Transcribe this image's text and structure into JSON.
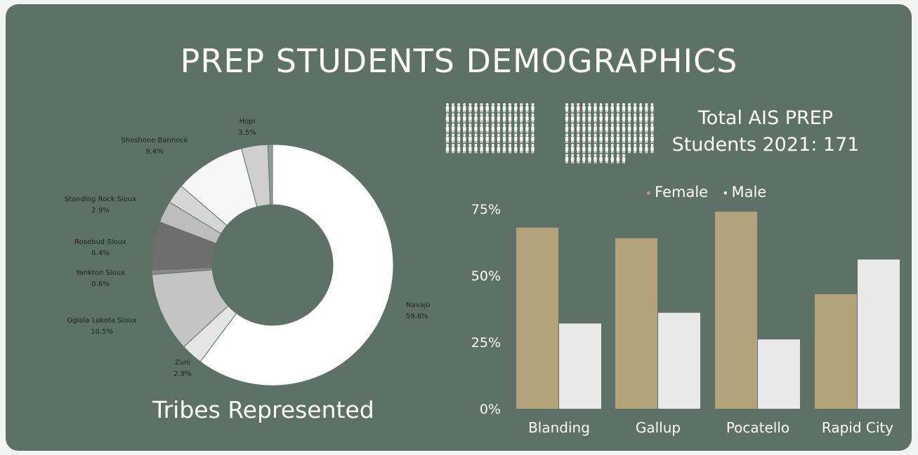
{
  "title": "PREP STUDENTS DEMOGRAPHICS",
  "colors": {
    "background": "#5e7169",
    "female": "#b4a27a",
    "male": "#e9e9e9"
  },
  "total": {
    "line1": "Total AIS PREP",
    "line2": "Students 2021: 171"
  },
  "icon_grid": {
    "icon": "person-icon",
    "count": 171
  },
  "chart_data": [
    {
      "type": "pie",
      "subtype": "donut",
      "title": "Tribes Represented",
      "slices": [
        {
          "label": "Navajo",
          "value_label": "59.6%",
          "value": 59.6,
          "color": "#ffffff"
        },
        {
          "label": "Zuni",
          "value_label": "2.9%",
          "value": 2.9,
          "color": "#e4e4e4"
        },
        {
          "label": "Oglala Lakota Sioux",
          "value_label": "10.5%",
          "value": 10.5,
          "color": "#c4c4c4"
        },
        {
          "label": "Yankton Sioux",
          "value_label": "0.6%",
          "value": 0.6,
          "color": "#8a8a8a"
        },
        {
          "label": "Rosebud Sioux",
          "value_label": "6.4%",
          "value": 6.4,
          "color": "#6e6e6e"
        },
        {
          "label": "Standing Rock Sioux",
          "value_label": "2.9%",
          "value": 2.9,
          "color": "#bdbdbd"
        },
        {
          "label": "",
          "value_label": "",
          "value": 2.6,
          "color": "#d6d6d6"
        },
        {
          "label": "Shoshone Bannock",
          "value_label": "9.4%",
          "value": 9.4,
          "color": "#f7f7f7"
        },
        {
          "label": "Hopi",
          "value_label": "3.5%",
          "value": 3.5,
          "color": "#cfcfcf"
        },
        {
          "label": "",
          "value_label": "",
          "value": 0.6,
          "color": "#9a9a9a"
        }
      ]
    },
    {
      "type": "bar",
      "categories": [
        "Blanding",
        "Gallup",
        "Pocatello",
        "Rapid City"
      ],
      "series": [
        {
          "name": "Female",
          "values": [
            68,
            64,
            74,
            43
          ]
        },
        {
          "name": "Male",
          "values": [
            32,
            36,
            26,
            56
          ]
        }
      ],
      "ylim": [
        0,
        100
      ],
      "yticks": [
        "0%",
        "25%",
        "50%",
        "75%"
      ],
      "ytick_values": [
        0,
        25,
        50,
        75
      ],
      "legend": "top",
      "grid": false
    }
  ]
}
